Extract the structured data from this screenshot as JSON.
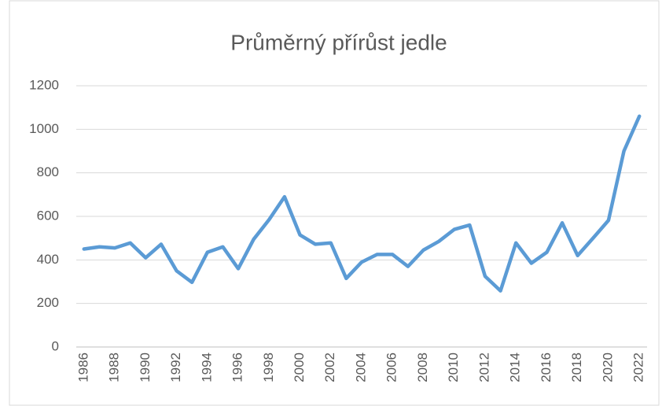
{
  "chart_data": {
    "type": "line",
    "title": "Průměrný přírůst jedle",
    "categories": [
      "1986",
      null,
      "1988",
      null,
      "1990",
      null,
      "1992",
      null,
      "1994",
      null,
      "1996",
      null,
      "1998",
      null,
      "2000",
      null,
      "2002",
      null,
      "2004",
      null,
      "2006",
      null,
      "2008",
      null,
      "2010",
      null,
      "2012",
      null,
      "2014",
      null,
      "2016",
      null,
      "2018",
      null,
      "2020",
      null,
      "2022"
    ],
    "series": [
      {
        "name": "Průměrný přírůst jedle",
        "color": "#5b9bd5",
        "values": [
          450,
          460,
          455,
          478,
          410,
          472,
          350,
          297,
          435,
          460,
          360,
          495,
          585,
          690,
          515,
          472,
          478,
          315,
          390,
          425,
          425,
          370,
          445,
          485,
          540,
          560,
          325,
          258,
          478,
          385,
          435,
          570,
          420,
          500,
          582,
          900,
          1060
        ]
      }
    ],
    "ylim": [
      0,
      1200
    ],
    "yticks": [
      0,
      200,
      400,
      600,
      800,
      1000,
      1200
    ],
    "grid": true
  }
}
